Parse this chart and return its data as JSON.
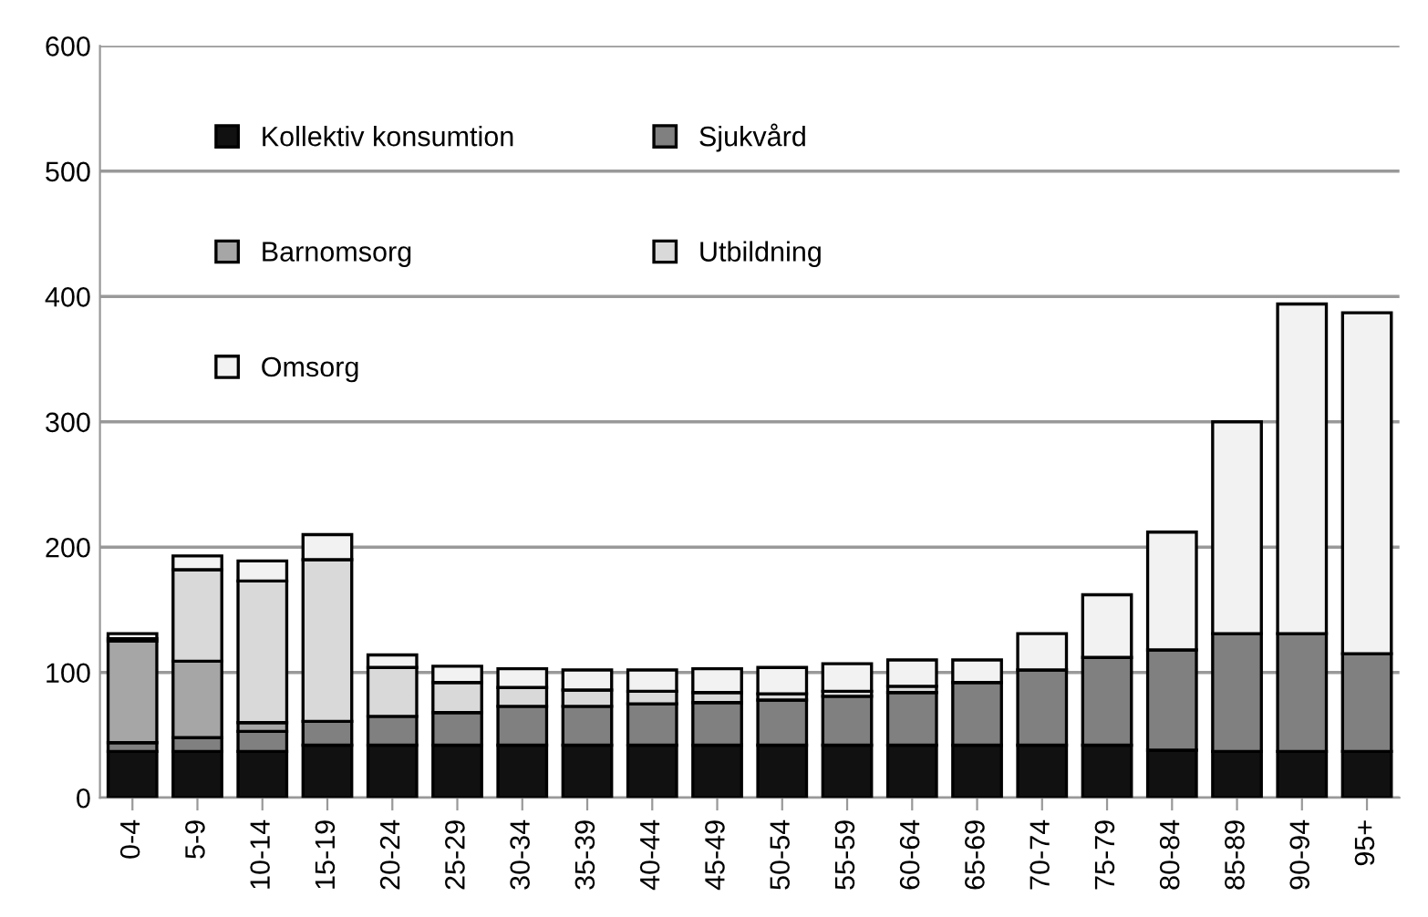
{
  "chart_data": {
    "type": "bar",
    "stacked": true,
    "categories": [
      "0-4",
      "5-9",
      "10-14",
      "15-19",
      "20-24",
      "25-29",
      "30-34",
      "35-39",
      "40-44",
      "45-49",
      "50-54",
      "55-59",
      "60-64",
      "65-69",
      "70-74",
      "75-79",
      "80-84",
      "85-89",
      "90-94",
      "95+"
    ],
    "series": [
      {
        "name": "Kollektiv konsumtion",
        "color": "#111111",
        "values": [
          37,
          37,
          37,
          42,
          42,
          42,
          42,
          42,
          42,
          42,
          42,
          42,
          42,
          42,
          42,
          42,
          38,
          37,
          37,
          37
        ]
      },
      {
        "name": "Sjukvård",
        "color": "#808080",
        "values": [
          7,
          11,
          16,
          19,
          23,
          26,
          31,
          31,
          33,
          34,
          36,
          39,
          42,
          50,
          60,
          70,
          80,
          94,
          94,
          78
        ]
      },
      {
        "name": "Barnomsorg",
        "color": "#a6a6a6",
        "values": [
          81,
          61,
          7,
          0,
          0,
          0,
          0,
          0,
          0,
          0,
          0,
          0,
          0,
          0,
          0,
          0,
          0,
          0,
          0,
          0
        ]
      },
      {
        "name": "Utbildning",
        "color": "#d9d9d9",
        "values": [
          2,
          73,
          113,
          129,
          39,
          24,
          15,
          13,
          10,
          8,
          5,
          4,
          5,
          0,
          0,
          0,
          0,
          0,
          0,
          0
        ]
      },
      {
        "name": "Omsorg",
        "color": "#f2f2f2",
        "values": [
          4,
          11,
          16,
          20,
          10,
          13,
          15,
          16,
          17,
          19,
          21,
          22,
          21,
          18,
          29,
          50,
          94,
          169,
          263,
          272
        ]
      }
    ],
    "ylim": [
      0,
      600
    ],
    "yticks": [
      0,
      100,
      200,
      300,
      400,
      500,
      600
    ],
    "grid": "y",
    "legend": "top left"
  }
}
